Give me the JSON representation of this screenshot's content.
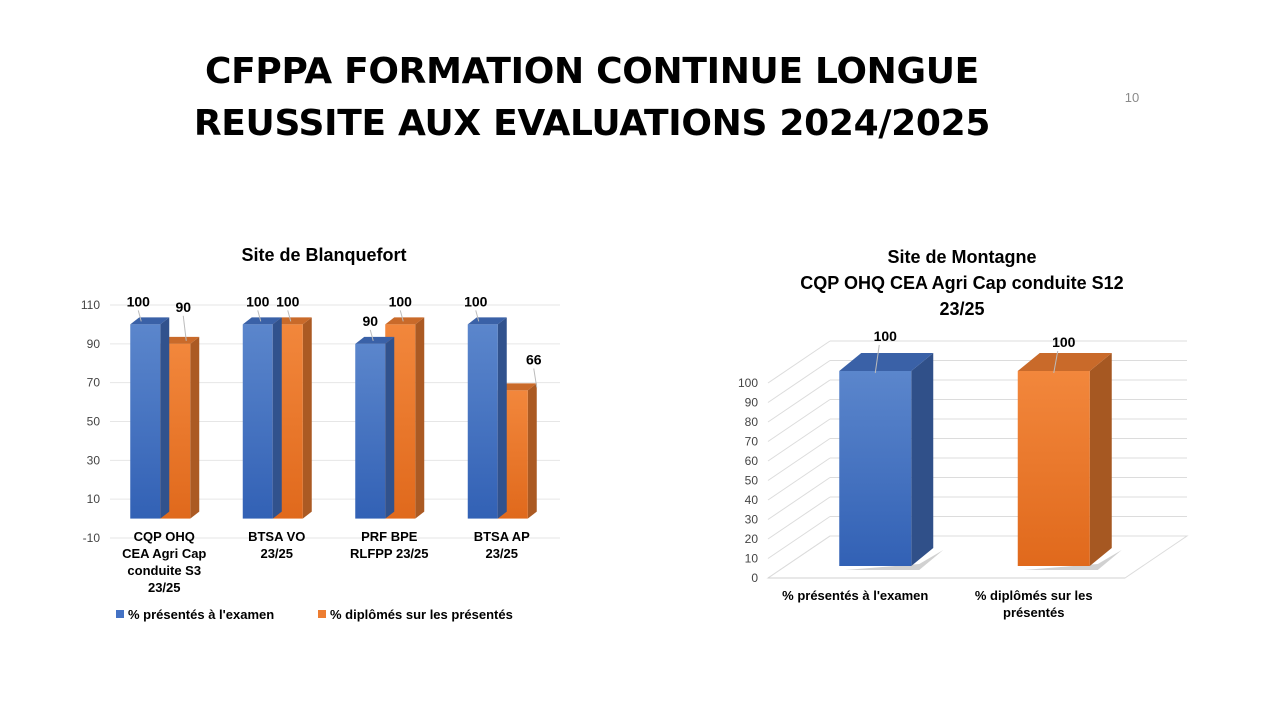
{
  "slide": {
    "title_line1": "CFPPA FORMATION CONTINUE LONGUE",
    "title_line2": "REUSSITE AUX EVALUATIONS 2024/2025",
    "page_number": "10"
  },
  "colors": {
    "blue": "#4472C4",
    "orange": "#ED7D31"
  },
  "chart_data": [
    {
      "type": "bar",
      "title": "Site de Blanquefort",
      "categories": [
        [
          "CQP OHQ",
          "CEA Agri Cap",
          "conduite S3",
          "23/25"
        ],
        [
          "BTSA VO",
          "23/25"
        ],
        [
          "PRF BPE",
          "RLFPP 23/25"
        ],
        [
          "BTSA AP",
          "23/25"
        ]
      ],
      "series": [
        {
          "name": "% présentés à l'examen",
          "values": [
            100,
            100,
            90,
            100
          ],
          "labels": [
            "100",
            "100",
            "90",
            "100"
          ]
        },
        {
          "name": "% diplômés sur les présentés",
          "values": [
            90,
            100,
            100,
            66
          ],
          "labels": [
            "90",
            "100",
            "100",
            "66"
          ]
        }
      ],
      "yticks": [
        -10,
        10,
        30,
        50,
        70,
        90,
        110
      ],
      "ylim": [
        -10,
        110
      ],
      "xlabel": "",
      "ylabel": "",
      "legend": "bottom"
    },
    {
      "type": "bar",
      "title_lines": [
        "Site de Montagne",
        "CQP OHQ CEA Agri Cap conduite S12",
        "23/25"
      ],
      "categories": [
        [
          "% présentés à l'examen"
        ],
        [
          "% diplômés sur les",
          "présentés"
        ]
      ],
      "values": [
        100,
        100
      ],
      "labels": [
        "100",
        "100"
      ],
      "yticks": [
        0,
        10,
        20,
        30,
        40,
        50,
        60,
        70,
        80,
        90,
        100
      ],
      "ylim": [
        0,
        100
      ],
      "xlabel": "",
      "ylabel": ""
    }
  ]
}
